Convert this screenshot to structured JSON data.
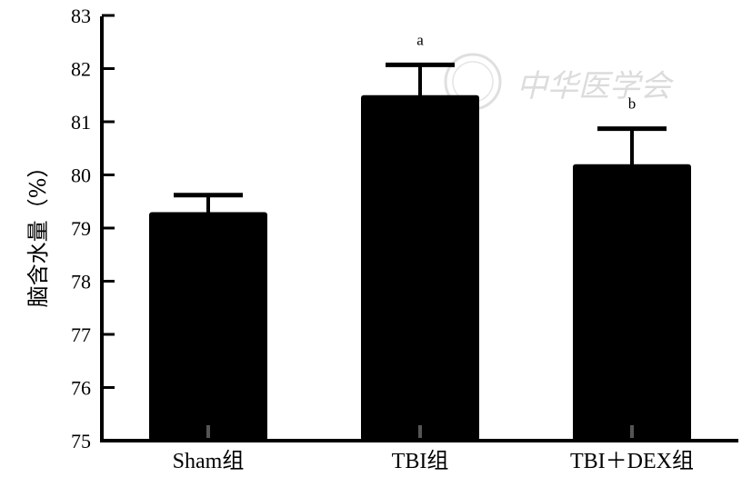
{
  "chart_data": {
    "type": "bar",
    "categories": [
      "Sham组",
      "TBI组",
      "TBI＋DEX组"
    ],
    "values": [
      79.3,
      81.5,
      80.2
    ],
    "errors": [
      0.32,
      0.57,
      0.67
    ],
    "annotations": [
      "",
      "a",
      "b"
    ],
    "ylabel": "脑含水量（%）",
    "xlabel": "",
    "ylim": [
      75,
      83
    ],
    "yticks": [
      75,
      76,
      77,
      78,
      79,
      80,
      81,
      82,
      83
    ],
    "grid": false,
    "bar_color": "#000000"
  },
  "watermark": {
    "text": "中华医学会"
  }
}
